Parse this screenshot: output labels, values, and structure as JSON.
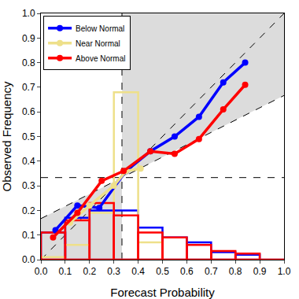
{
  "chart_data": {
    "type": "line",
    "x_label": "Forecast Probability",
    "y_label": "Observed Frequency",
    "xlim": [
      0,
      1
    ],
    "ylim": [
      0,
      1
    ],
    "xticks": [
      {
        "value": 0,
        "label": "0.0"
      },
      0.1,
      0.2,
      0.3,
      0.4,
      0.5,
      0.6,
      0.7,
      0.8,
      0.9,
      {
        "value": 1,
        "label": "1.0"
      }
    ],
    "yticks": [
      {
        "value": 0,
        "label": "0.0"
      },
      0.1,
      0.2,
      0.3,
      0.4,
      0.5,
      0.6,
      0.7,
      0.8,
      0.9,
      {
        "value": 1,
        "label": "1.0"
      }
    ],
    "grid": false,
    "legend": "top-left",
    "climatology": 0.3333,
    "series": [
      {
        "name": "Below Normal",
        "color": "#0000ff",
        "marker": "circle",
        "x": [
          0.06,
          0.15,
          0.24,
          0.35,
          0.45,
          0.55,
          0.65,
          0.75,
          0.84
        ],
        "values": [
          0.12,
          0.22,
          0.21,
          0.36,
          0.44,
          0.5,
          0.58,
          0.72,
          0.8
        ],
        "histogram": {
          "bins": [
            0,
            0.1,
            0.2,
            0.3,
            0.4,
            0.5,
            0.6,
            0.7,
            0.8,
            0.9,
            1.0
          ],
          "values": [
            0.11,
            0.17,
            0.2,
            0.2,
            0.13,
            0.09,
            0.07,
            0.03,
            0.02,
            0
          ]
        }
      },
      {
        "name": "Near Normal",
        "color": "#eee08a",
        "marker": "circle",
        "x": [
          0.12,
          0.2,
          0.3,
          0.35,
          0.41
        ],
        "values": [
          0.15,
          0.22,
          0.3,
          0.36,
          0.37
        ],
        "histogram": {
          "bins": [
            0,
            0.1,
            0.2,
            0.3,
            0.4,
            0.5,
            0.6,
            0.7,
            0.8,
            0.9,
            1.0
          ],
          "values": [
            0.01,
            0.06,
            0.19,
            0.68,
            0.07,
            0,
            0,
            0,
            0,
            0
          ]
        }
      },
      {
        "name": "Above Normal",
        "color": "#ff0000",
        "marker": "circle",
        "x": [
          0.05,
          0.15,
          0.25,
          0.34,
          0.45,
          0.55,
          0.65,
          0.75,
          0.84
        ],
        "values": [
          0.09,
          0.19,
          0.32,
          0.36,
          0.44,
          0.43,
          0.49,
          0.61,
          0.71
        ],
        "histogram": {
          "bins": [
            0,
            0.1,
            0.2,
            0.3,
            0.4,
            0.5,
            0.6,
            0.7,
            0.8,
            0.9,
            1.0
          ],
          "values": [
            0.11,
            0.16,
            0.23,
            0.18,
            0.11,
            0.09,
            0.06,
            0.035,
            0.025,
            0
          ]
        }
      }
    ]
  }
}
